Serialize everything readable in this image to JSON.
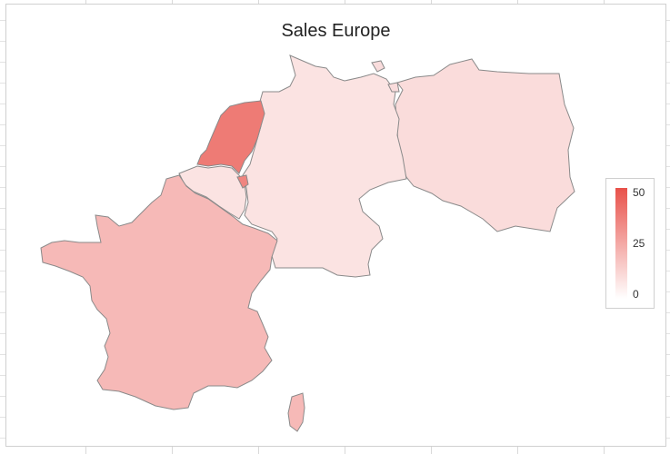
{
  "chart_data": {
    "type": "choropleth",
    "title": "Sales Europe",
    "regions": [
      {
        "name": "Poland",
        "value": 10
      },
      {
        "name": "Germany",
        "value": 8
      },
      {
        "name": "Netherlands",
        "value": 38
      },
      {
        "name": "Belgium",
        "value": 8
      },
      {
        "name": "Luxembourg",
        "value": 35
      },
      {
        "name": "France",
        "value": 20
      }
    ],
    "color_scale": {
      "min": 0,
      "max": 50,
      "min_color": "#ffffff",
      "max_color": "#e8514a"
    },
    "legend": {
      "placement": "right",
      "ticks": [
        "50",
        "25",
        "0"
      ]
    }
  }
}
